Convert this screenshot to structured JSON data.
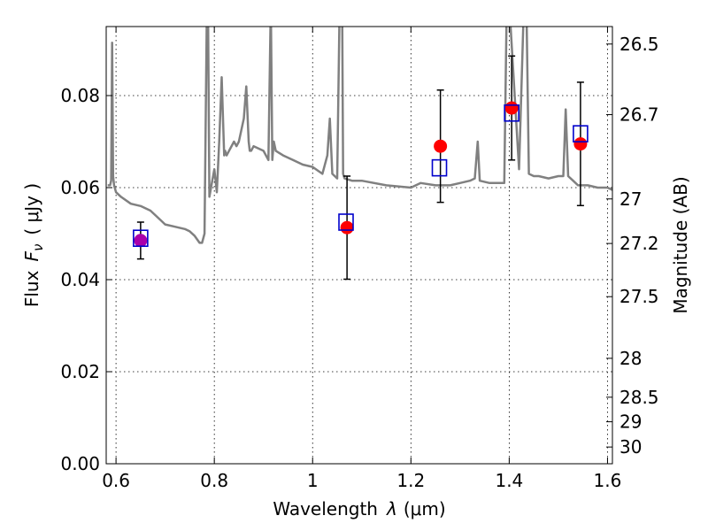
{
  "chart_data": {
    "type": "scatter",
    "xlabel": "Wavelength",
    "xlabel_symbol": "λ",
    "xlabel_unit": "(μm)",
    "ylabel": "Flux",
    "ylabel_symbol": "F",
    "ylabel_subscript": "ν",
    "ylabel_unit": "( μJy )",
    "y2label": "Magnitude (AB)",
    "xlim": [
      0.58,
      1.61
    ],
    "ylim": [
      0.0,
      0.095
    ],
    "grid": true,
    "x_ticks": [
      0.6,
      0.8,
      1.0,
      1.2,
      1.4,
      1.6
    ],
    "x_tick_labels": [
      "0.6",
      "0.8",
      "1",
      "1.2",
      "1.4",
      "1.6"
    ],
    "y_ticks": [
      0.0,
      0.02,
      0.04,
      0.06,
      0.08
    ],
    "y_tick_labels": [
      "0.00",
      "0.02",
      "0.04",
      "0.06",
      "0.08"
    ],
    "y2_ticks": [
      26.5,
      26.7,
      27,
      27.2,
      27.5,
      28,
      28.5,
      29,
      30
    ],
    "y2_tick_labels": [
      "26.5",
      "26.7",
      "27",
      "27.2",
      "27.5",
      "28",
      "28.5",
      "29",
      "30"
    ],
    "colors": {
      "model": "#808080",
      "observed": "#ff0000",
      "synthetic": "#0000cc",
      "error": "#000000",
      "overlap": "#aa00aa"
    },
    "series": [
      {
        "type": "line",
        "x": [
          0.583,
          0.588,
          0.59,
          0.592,
          0.594,
          0.596,
          0.6,
          0.61,
          0.63,
          0.65,
          0.67,
          0.69,
          0.7,
          0.72,
          0.74,
          0.75,
          0.76,
          0.77,
          0.775,
          0.78,
          0.785,
          0.787,
          0.79,
          0.8,
          0.805,
          0.81,
          0.815,
          0.82,
          0.822,
          0.825,
          0.83,
          0.84,
          0.845,
          0.85,
          0.86,
          0.865,
          0.87,
          0.872,
          0.875,
          0.88,
          0.9,
          0.91,
          0.915,
          0.918,
          0.921,
          0.925,
          0.94,
          0.96,
          0.98,
          1.0,
          1.02,
          1.03,
          1.035,
          1.04,
          1.05,
          1.055,
          1.06,
          1.062,
          1.065,
          1.08,
          1.1,
          1.15,
          1.2,
          1.22,
          1.25,
          1.26,
          1.28,
          1.3,
          1.32,
          1.33,
          1.336,
          1.34,
          1.36,
          1.38,
          1.39,
          1.395,
          1.4,
          1.42,
          1.43,
          1.435,
          1.44,
          1.45,
          1.46,
          1.48,
          1.5,
          1.51,
          1.515,
          1.52,
          1.53,
          1.54,
          1.55,
          1.56,
          1.58,
          1.6,
          1.61
        ],
        "y": [
          0.0605,
          0.0605,
          0.0615,
          0.0915,
          0.0625,
          0.0605,
          0.059,
          0.058,
          0.0565,
          0.056,
          0.055,
          0.053,
          0.052,
          0.0515,
          0.051,
          0.0505,
          0.0495,
          0.048,
          0.048,
          0.05,
          0.1,
          0.1,
          0.058,
          0.064,
          0.059,
          0.07,
          0.084,
          0.067,
          0.068,
          0.067,
          0.068,
          0.07,
          0.069,
          0.07,
          0.075,
          0.082,
          0.07,
          0.068,
          0.068,
          0.069,
          0.068,
          0.066,
          0.1,
          0.066,
          0.07,
          0.068,
          0.067,
          0.066,
          0.065,
          0.0645,
          0.063,
          0.067,
          0.075,
          0.063,
          0.062,
          0.1,
          0.1,
          0.063,
          0.062,
          0.0615,
          0.0615,
          0.0605,
          0.06,
          0.061,
          0.0605,
          0.0605,
          0.0605,
          0.061,
          0.0615,
          0.062,
          0.07,
          0.0615,
          0.061,
          0.061,
          0.061,
          0.1,
          0.1,
          0.064,
          0.1,
          0.1,
          0.063,
          0.0625,
          0.0625,
          0.062,
          0.0625,
          0.0625,
          0.077,
          0.0625,
          0.0615,
          0.0605,
          0.0605,
          0.0605,
          0.06,
          0.06,
          0.0595
        ]
      },
      {
        "type": "scatter-errorbar",
        "marker": "circle",
        "x": [
          0.65,
          1.07,
          1.26,
          1.405,
          1.545
        ],
        "y": [
          0.0485,
          0.0513,
          0.069,
          0.0773,
          0.0695
        ],
        "yerr": [
          0.004,
          0.0112,
          0.0122,
          0.0113,
          0.0134
        ]
      },
      {
        "type": "scatter",
        "marker": "square-open",
        "x": [
          0.65,
          1.068,
          1.258,
          1.405,
          1.545
        ],
        "y": [
          0.049,
          0.0525,
          0.0643,
          0.0762,
          0.0717
        ]
      }
    ]
  }
}
